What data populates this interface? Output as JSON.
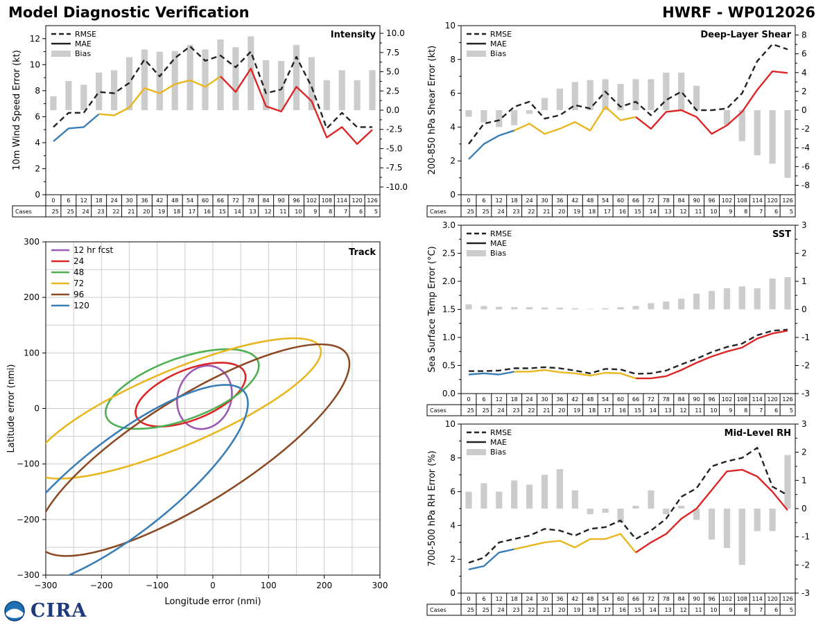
{
  "header": {
    "title": "Model Diagnostic Verification",
    "storm": "HWRF - WP012026"
  },
  "logo": {
    "text": "CIRA"
  },
  "colors": {
    "rmse": "#222222",
    "mae": "#222222",
    "bias": "#cccccc",
    "seg_blue": "#3a7db6",
    "seg_yellow": "#e8b61e",
    "seg_red": "#dc2626",
    "track_12": "#9b59b6",
    "track_24": "#dc2626",
    "track_48": "#4caf50",
    "track_72": "#e8b61e",
    "track_96": "#8b4a24",
    "track_120": "#3a7db6"
  },
  "chart_data": [
    {
      "id": "intensity",
      "type": "line",
      "title": "Intensity",
      "ylabel": "10m Wind Speed Error (kt)",
      "ylim": [
        0,
        13
      ],
      "yticks": [
        0,
        2,
        4,
        6,
        8,
        10,
        12
      ],
      "y2lim": [
        -11,
        11
      ],
      "y2ticks": [
        -10.0,
        -7.5,
        -5.0,
        -2.5,
        0.0,
        2.5,
        5.0,
        7.5,
        10.0
      ],
      "legend": [
        "RMSE",
        "MAE",
        "Bias"
      ],
      "lead_times": [
        0,
        6,
        12,
        18,
        24,
        30,
        36,
        42,
        48,
        54,
        60,
        66,
        72,
        78,
        84,
        90,
        96,
        102,
        108,
        114,
        120,
        126
      ],
      "cases": [
        25,
        25,
        24,
        23,
        22,
        21,
        20,
        19,
        18,
        17,
        16,
        15,
        14,
        13,
        12,
        11,
        10,
        9,
        8,
        7,
        6,
        5
      ],
      "cases_label": "Cases",
      "rmse": [
        5.2,
        6.3,
        6.3,
        7.9,
        7.8,
        8.6,
        10.4,
        9.1,
        10.5,
        11.4,
        10.3,
        10.7,
        9.8,
        11.0,
        7.8,
        8.1,
        10.6,
        8.3,
        5.1,
        6.3,
        5.2,
        5.2
      ],
      "mae": [
        4.1,
        5.1,
        5.2,
        6.2,
        6.1,
        6.7,
        8.2,
        7.8,
        8.5,
        8.8,
        8.3,
        9.1,
        7.9,
        9.7,
        6.8,
        6.4,
        8.3,
        7.2,
        4.4,
        5.2,
        3.9,
        5.0
      ],
      "bias": [
        1.8,
        3.8,
        3.3,
        4.9,
        5.2,
        6.9,
        7.9,
        7.6,
        7.7,
        8.5,
        7.9,
        9.2,
        8.2,
        9.6,
        6.5,
        6.4,
        8.5,
        6.9,
        3.9,
        5.2,
        3.9,
        5.2
      ]
    },
    {
      "id": "shear",
      "type": "line",
      "title": "Deep-Layer Shear",
      "ylabel": "200-850 hPa Shear Error (kt)",
      "ylim": [
        0,
        10
      ],
      "yticks": [
        0,
        2,
        4,
        6,
        8,
        10
      ],
      "y2lim": [
        -9,
        9
      ],
      "y2ticks": [
        -8,
        -6,
        -4,
        -2,
        0,
        2,
        4,
        6,
        8
      ],
      "legend": [
        "RMSE",
        "MAE",
        "Bias"
      ],
      "lead_times": [
        0,
        6,
        12,
        18,
        24,
        30,
        36,
        42,
        48,
        54,
        60,
        66,
        72,
        78,
        84,
        90,
        96,
        102,
        108,
        114,
        120,
        126
      ],
      "cases": [
        25,
        25,
        24,
        23,
        22,
        21,
        20,
        19,
        18,
        17,
        16,
        15,
        14,
        13,
        12,
        11,
        10,
        9,
        8,
        7,
        6,
        5
      ],
      "cases_label": "Cases",
      "rmse": [
        3.0,
        4.2,
        4.4,
        5.2,
        5.5,
        4.5,
        4.7,
        5.3,
        5.1,
        6.1,
        5.2,
        5.5,
        4.7,
        5.6,
        6.1,
        5.0,
        5.0,
        5.1,
        6.0,
        7.9,
        8.9,
        8.6
      ],
      "mae": [
        2.1,
        3.0,
        3.5,
        3.8,
        4.2,
        3.6,
        3.9,
        4.3,
        3.8,
        5.2,
        4.4,
        4.6,
        3.9,
        4.9,
        5.0,
        4.6,
        3.6,
        4.1,
        4.9,
        6.2,
        7.3,
        7.2
      ],
      "bias": [
        -0.7,
        -1.3,
        -1.8,
        -1.6,
        -0.4,
        1.3,
        2.3,
        3.0,
        3.2,
        3.3,
        2.8,
        3.3,
        3.3,
        4.0,
        4.0,
        2.6,
        0.0,
        -1.6,
        -3.3,
        -4.8,
        -5.7,
        -7.2
      ]
    },
    {
      "id": "sst",
      "type": "line",
      "title": "SST",
      "ylabel": "Sea Surface Temp Error (°C)",
      "ylim": [
        0,
        3.0
      ],
      "yticks": [
        0.0,
        0.5,
        1.0,
        1.5,
        2.0,
        2.5,
        3.0
      ],
      "y2lim": [
        -3,
        3
      ],
      "y2ticks": [
        -3,
        -2,
        -1,
        0,
        1,
        2,
        3
      ],
      "legend": [
        "RMSE",
        "MAE",
        "Bias"
      ],
      "lead_times": [
        0,
        6,
        12,
        18,
        24,
        30,
        36,
        42,
        48,
        54,
        60,
        66,
        72,
        78,
        84,
        90,
        96,
        102,
        108,
        114,
        120,
        126
      ],
      "cases": [
        25,
        25,
        24,
        23,
        22,
        21,
        20,
        19,
        18,
        17,
        16,
        15,
        14,
        13,
        12,
        11,
        10,
        9,
        8,
        7,
        6,
        5
      ],
      "cases_label": "Cases",
      "rmse": [
        0.4,
        0.4,
        0.41,
        0.45,
        0.45,
        0.47,
        0.45,
        0.41,
        0.36,
        0.44,
        0.43,
        0.35,
        0.36,
        0.41,
        0.52,
        0.62,
        0.74,
        0.83,
        0.89,
        1.04,
        1.12,
        1.14
      ],
      "mae": [
        0.34,
        0.36,
        0.34,
        0.39,
        0.39,
        0.42,
        0.38,
        0.36,
        0.32,
        0.37,
        0.36,
        0.27,
        0.27,
        0.31,
        0.42,
        0.55,
        0.66,
        0.75,
        0.82,
        0.98,
        1.07,
        1.12
      ],
      "bias": [
        0.18,
        0.12,
        0.09,
        0.08,
        0.08,
        0.07,
        0.06,
        0.04,
        0.02,
        0.04,
        0.08,
        0.12,
        0.22,
        0.28,
        0.38,
        0.56,
        0.66,
        0.75,
        0.82,
        0.75,
        1.1,
        1.15
      ]
    },
    {
      "id": "rh",
      "type": "line",
      "title": "Mid-Level RH",
      "ylabel": "700-500 hPa RH Error (%)",
      "ylim": [
        0,
        10
      ],
      "yticks": [
        0,
        2,
        4,
        6,
        8,
        10
      ],
      "y2lim": [
        -3,
        3
      ],
      "y2ticks": [
        -3,
        -2,
        -1,
        0,
        1,
        2,
        3
      ],
      "legend": [
        "RMSE",
        "MAE",
        "Bias"
      ],
      "lead_times": [
        0,
        6,
        12,
        18,
        24,
        30,
        36,
        42,
        48,
        54,
        60,
        66,
        72,
        78,
        84,
        90,
        96,
        102,
        108,
        114,
        120,
        126
      ],
      "cases": [
        25,
        25,
        24,
        23,
        22,
        21,
        20,
        19,
        18,
        17,
        16,
        15,
        14,
        13,
        12,
        11,
        10,
        9,
        8,
        7,
        6,
        5
      ],
      "cases_label": "Cases",
      "rmse": [
        1.8,
        2.1,
        3.0,
        3.2,
        3.4,
        3.8,
        3.7,
        3.4,
        3.8,
        3.9,
        4.3,
        3.2,
        3.7,
        4.4,
        5.7,
        6.2,
        7.5,
        7.8,
        8.0,
        8.6,
        6.3,
        5.8
      ],
      "mae": [
        1.4,
        1.6,
        2.4,
        2.6,
        2.8,
        3.0,
        3.1,
        2.7,
        3.2,
        3.2,
        3.5,
        2.4,
        3.0,
        3.5,
        4.4,
        5.0,
        6.1,
        7.2,
        7.3,
        6.9,
        6.0,
        4.9
      ],
      "bias": [
        0.6,
        0.9,
        0.6,
        1.0,
        0.85,
        1.2,
        1.4,
        0.65,
        -0.2,
        -0.15,
        -0.5,
        0.1,
        0.65,
        -0.2,
        0.1,
        -0.4,
        -1.1,
        -1.4,
        -2.0,
        -0.8,
        -0.8,
        1.9
      ]
    },
    {
      "id": "track",
      "type": "scatter",
      "title": "Track",
      "xlabel": "Longitude error (nmi)",
      "ylabel": "Latitude error (nmi)",
      "xlim": [
        -300,
        300
      ],
      "ylim": [
        -300,
        300
      ],
      "xticks": [
        -300,
        -200,
        -100,
        0,
        100,
        200,
        300
      ],
      "yticks": [
        -300,
        -200,
        -100,
        0,
        100,
        200,
        300
      ],
      "series": [
        {
          "name": "12 hr fcst",
          "cx": -15,
          "cy": 20,
          "a": 48,
          "b": 58,
          "angle": -20,
          "color_key": "track_12"
        },
        {
          "name": "24",
          "cx": -40,
          "cy": 25,
          "a": 105,
          "b": 45,
          "angle": 22,
          "color_key": "track_24"
        },
        {
          "name": "48",
          "cx": -55,
          "cy": 35,
          "a": 145,
          "b": 55,
          "angle": 20,
          "color_key": "track_48"
        },
        {
          "name": "72",
          "cx": -65,
          "cy": 0,
          "a": 280,
          "b": 68,
          "angle": 23,
          "color_key": "track_72"
        },
        {
          "name": "96",
          "cx": -35,
          "cy": -75,
          "a": 325,
          "b": 95,
          "angle": 32,
          "color_key": "track_96"
        },
        {
          "name": "120",
          "cx": -160,
          "cy": -140,
          "a": 275,
          "b": 85,
          "angle": 38,
          "color_key": "track_120"
        }
      ]
    }
  ]
}
